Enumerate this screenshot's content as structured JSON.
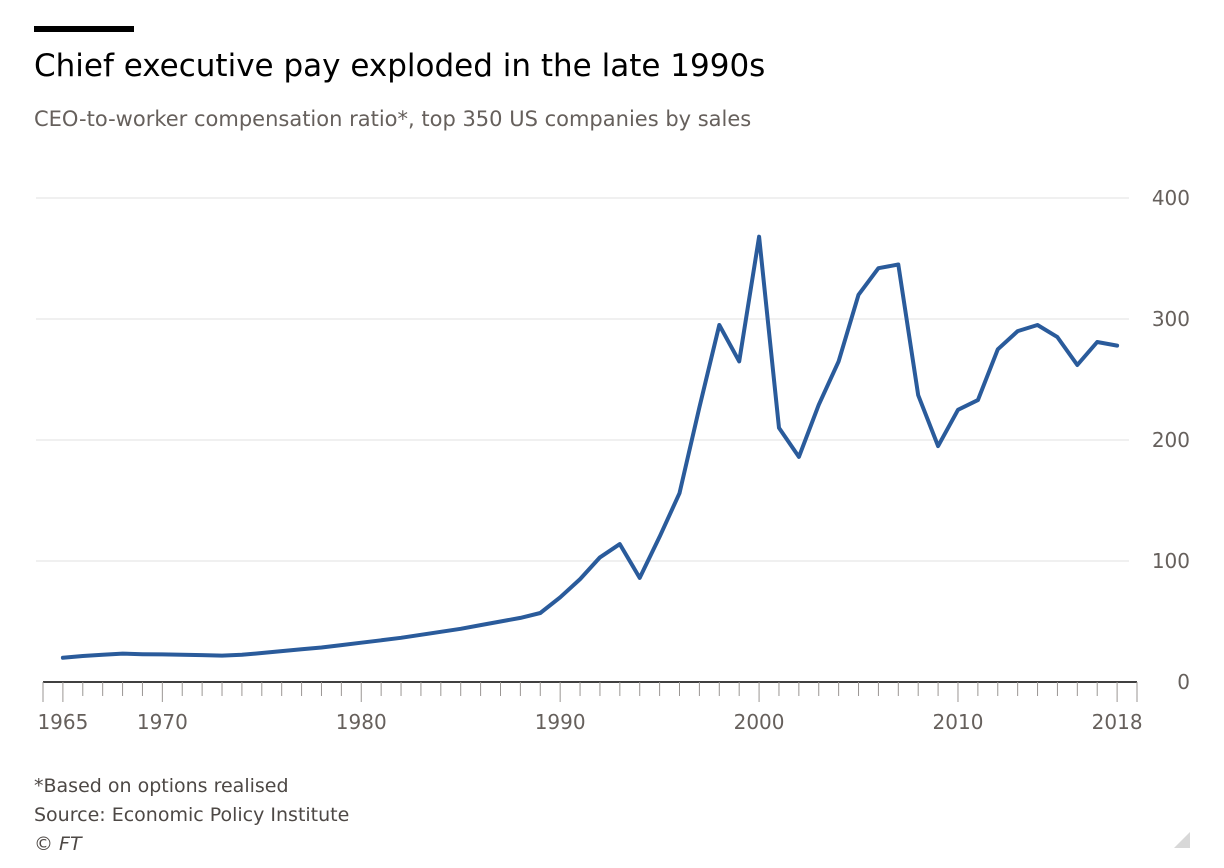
{
  "title": "Chief executive pay exploded in the late 1990s",
  "subtitle": "CEO-to-worker compensation ratio*, top 350 US companies by sales",
  "notes": {
    "footnote": "*Based on options realised",
    "source": "Source: Economic Policy Institute",
    "credit": "© FT"
  },
  "colors": {
    "line": "#2a5b9b",
    "grid": "#e6e6e6",
    "axis": "#66605c"
  },
  "chart_data": {
    "type": "line",
    "title": "Chief executive pay exploded in the late 1990s",
    "subtitle": "CEO-to-worker compensation ratio*, top 350 US companies by sales",
    "xlim": [
      1964,
      2019
    ],
    "ylim": [
      0,
      400
    ],
    "y_ticks": [
      0,
      100,
      200,
      300,
      400
    ],
    "x_tick_labels": [
      {
        "value": 1965,
        "label": "1965"
      },
      {
        "value": 1970,
        "label": "1970"
      },
      {
        "value": 1980,
        "label": "1980"
      },
      {
        "value": 1990,
        "label": "1990"
      },
      {
        "value": 2000,
        "label": "2000"
      },
      {
        "value": 2010,
        "label": "2010"
      },
      {
        "value": 2018,
        "label": "2018"
      }
    ],
    "y_axis_side": "right",
    "grid": true,
    "series": [
      {
        "x": [
          1965,
          1966,
          1967,
          1968,
          1969,
          1970,
          1971,
          1972,
          1973,
          1974,
          1975,
          1976,
          1977,
          1978,
          1979,
          1980,
          1981,
          1982,
          1983,
          1984,
          1985,
          1986,
          1987,
          1988,
          1989,
          1990,
          1991,
          1992,
          1993,
          1994,
          1995,
          1996,
          1997,
          1998,
          1999,
          2000,
          2001,
          2002,
          2003,
          2004,
          2005,
          2006,
          2007,
          2008,
          2009,
          2010,
          2011,
          2012,
          2013,
          2014,
          2015,
          2016,
          2017,
          2018
        ],
        "y": [
          20,
          21.5,
          22.5,
          23.5,
          23,
          22.8,
          22.5,
          22.2,
          21.8,
          22.5,
          24,
          25.5,
          27,
          28.5,
          30.5,
          32.5,
          34.5,
          36.5,
          39,
          41.5,
          44,
          47,
          50,
          53,
          57,
          70,
          85,
          103,
          114,
          86,
          120,
          156,
          227,
          295,
          265,
          368,
          210,
          186,
          229,
          265,
          320,
          342,
          345,
          237,
          195,
          225,
          233,
          275,
          290,
          295,
          285,
          262,
          281,
          278
        ]
      }
    ]
  }
}
